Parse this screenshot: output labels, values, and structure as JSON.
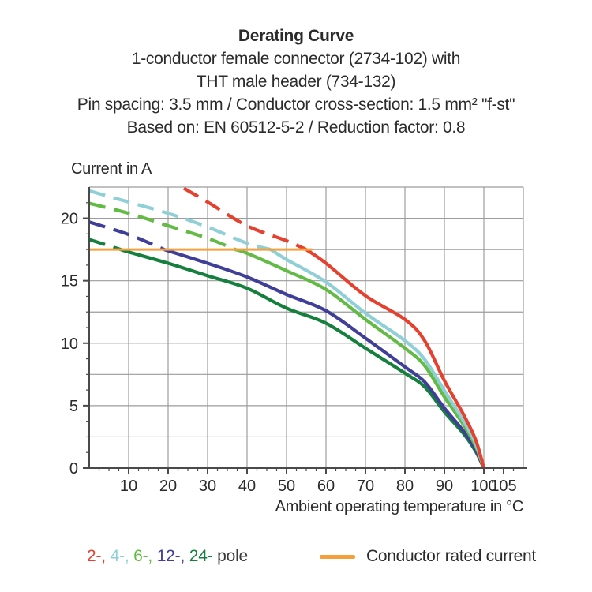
{
  "header": {
    "title": "Derating Curve",
    "subtitle_lines": [
      "1-conductor female connector (2734-102) with",
      "THT male header (734-132)",
      "Pin spacing: 3.5 mm / Conductor cross-section: 1.5 mm² \"f-st\"",
      "Based on: EN 60512-5-2 / Reduction factor: 0.8"
    ]
  },
  "chart_data": {
    "type": "line",
    "title": "Derating Curve",
    "ylabel": "Current in A",
    "xlabel": "Ambient operating temperature in °C",
    "xlim": [
      0,
      110
    ],
    "ylim": [
      0,
      22.5
    ],
    "x_major_ticks": [
      10,
      20,
      30,
      40,
      50,
      60,
      70,
      80,
      90,
      100,
      105
    ],
    "x_minor_step": 2.5,
    "y_major_ticks": [
      0,
      5,
      10,
      15,
      20
    ],
    "y_minor_step": 1.25,
    "x_grid_step": 10,
    "y_grid_step": 2.5,
    "grid": true,
    "legend_position": "bottom",
    "series": [
      {
        "name": "24-pole",
        "color": "#157F3D",
        "solid_from": 8,
        "points": [
          [
            0,
            18.3
          ],
          [
            8,
            17.5
          ],
          [
            10,
            17.3
          ],
          [
            20,
            16.4
          ],
          [
            30,
            15.4
          ],
          [
            40,
            14.4
          ],
          [
            50,
            12.8
          ],
          [
            60,
            11.6
          ],
          [
            70,
            9.6
          ],
          [
            80,
            7.6
          ],
          [
            85,
            6.5
          ],
          [
            90,
            4.5
          ],
          [
            95,
            2.7
          ],
          [
            98,
            1.3
          ],
          [
            100,
            0
          ]
        ]
      },
      {
        "name": "12-pole",
        "color": "#3F3F99",
        "solid_from": 19,
        "points": [
          [
            0,
            19.7
          ],
          [
            10,
            18.7
          ],
          [
            19,
            17.5
          ],
          [
            30,
            16.4
          ],
          [
            40,
            15.3
          ],
          [
            50,
            13.9
          ],
          [
            60,
            12.6
          ],
          [
            70,
            10.4
          ],
          [
            80,
            8.1
          ],
          [
            85,
            6.9
          ],
          [
            90,
            4.8
          ],
          [
            95,
            2.9
          ],
          [
            98,
            1.4
          ],
          [
            100,
            0
          ]
        ]
      },
      {
        "name": "6-pole",
        "color": "#63BB46",
        "solid_from": 37,
        "points": [
          [
            0,
            21.2
          ],
          [
            10,
            20.4
          ],
          [
            20,
            19.4
          ],
          [
            30,
            18.4
          ],
          [
            37,
            17.5
          ],
          [
            40,
            17.2
          ],
          [
            50,
            15.8
          ],
          [
            60,
            14.3
          ],
          [
            70,
            11.9
          ],
          [
            80,
            9.6
          ],
          [
            85,
            8.2
          ],
          [
            90,
            5.7
          ],
          [
            95,
            3.4
          ],
          [
            98,
            1.7
          ],
          [
            100,
            0
          ]
        ]
      },
      {
        "name": "4-pole",
        "color": "#8FCFD6",
        "solid_from": 46,
        "points": [
          [
            0,
            22.2
          ],
          [
            10,
            21.3
          ],
          [
            20,
            20.4
          ],
          [
            30,
            19.3
          ],
          [
            40,
            18.0
          ],
          [
            46,
            17.5
          ],
          [
            50,
            16.7
          ],
          [
            60,
            14.9
          ],
          [
            70,
            12.4
          ],
          [
            80,
            10.2
          ],
          [
            85,
            8.7
          ],
          [
            90,
            6.2
          ],
          [
            95,
            3.7
          ],
          [
            98,
            1.9
          ],
          [
            100,
            0
          ]
        ]
      },
      {
        "name": "2-pole",
        "color": "#E6402E",
        "solid_from": 55,
        "points": [
          [
            24,
            22.4
          ],
          [
            30,
            21.3
          ],
          [
            40,
            19.4
          ],
          [
            50,
            18.2
          ],
          [
            55,
            17.5
          ],
          [
            60,
            16.4
          ],
          [
            70,
            13.8
          ],
          [
            80,
            11.9
          ],
          [
            85,
            10.2
          ],
          [
            90,
            7.0
          ],
          [
            95,
            4.2
          ],
          [
            98,
            2.2
          ],
          [
            100,
            0
          ]
        ]
      }
    ],
    "reference_line": {
      "name": "Conductor rated current",
      "color": "#F5A03C",
      "value": 17.5,
      "x_start": 0,
      "x_end": 56.5
    }
  },
  "legend": {
    "pole_items": [
      {
        "label": "2-,",
        "color": "#E6402E"
      },
      {
        "label": "4-,",
        "color": "#8FCFD6"
      },
      {
        "label": "6-,",
        "color": "#63BB46"
      },
      {
        "label": "12-,",
        "color": "#3F3F99"
      },
      {
        "label": "24-",
        "color": "#157F3D"
      }
    ],
    "pole_suffix": "pole",
    "rated_current_label": "Conductor rated current"
  },
  "style_colors": {
    "grid": "#9C9C9C",
    "axis": "#4A4A4A",
    "text": "#2B2B2B"
  }
}
